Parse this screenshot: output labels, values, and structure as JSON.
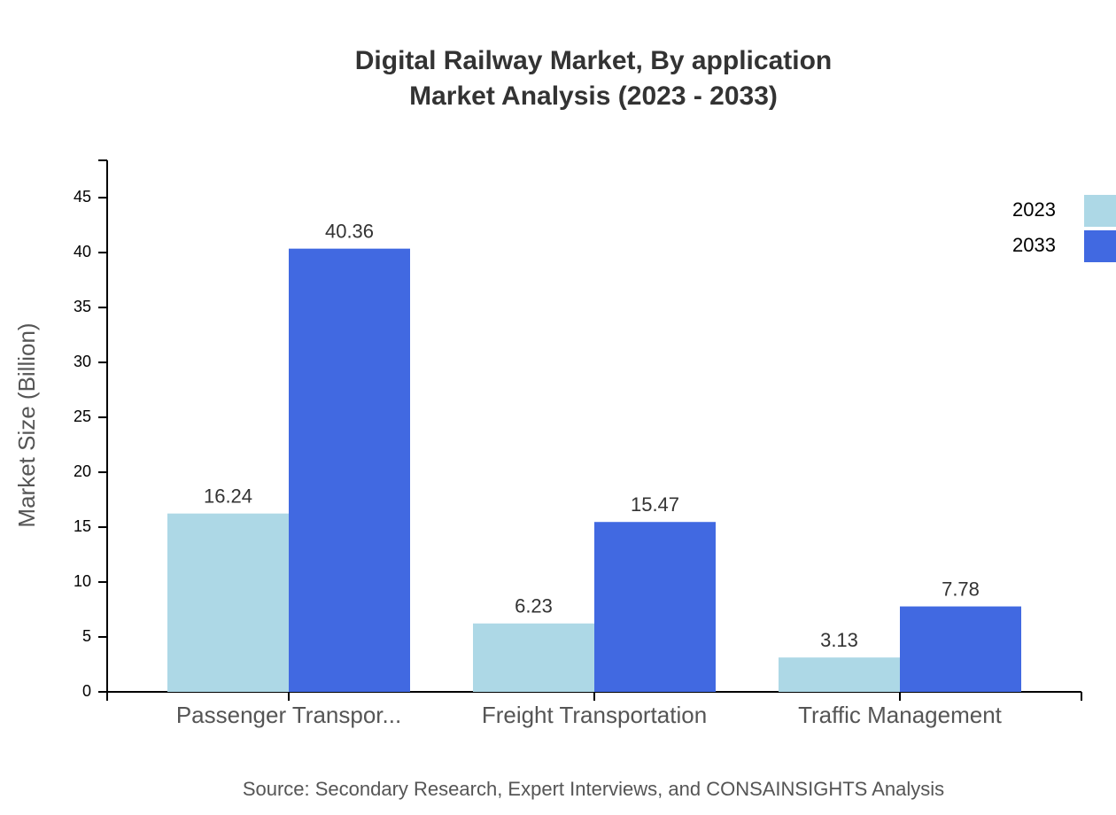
{
  "chart_data": {
    "type": "bar",
    "title": "Digital Railway Market, By application",
    "subtitle": "Market Analysis (2023 - 2033)",
    "y_label": "Market Size (Billion)",
    "source": "Source: Secondary Research, Expert Interviews, and CONSAINSIGHTS Analysis",
    "categories": [
      "Passenger Transpor...",
      "Freight Transportation",
      "Traffic Management"
    ],
    "series": [
      {
        "name": "2023",
        "color": "#add8e6",
        "values": [
          16.24,
          6.23,
          3.13
        ]
      },
      {
        "name": "2033",
        "color": "#4169e1",
        "values": [
          40.36,
          15.47,
          7.78
        ]
      }
    ],
    "ylim": [
      0,
      48.4
    ],
    "yticks": [
      0,
      5,
      10,
      15,
      20,
      25,
      30,
      35,
      40,
      45
    ],
    "legend": "top-right"
  }
}
